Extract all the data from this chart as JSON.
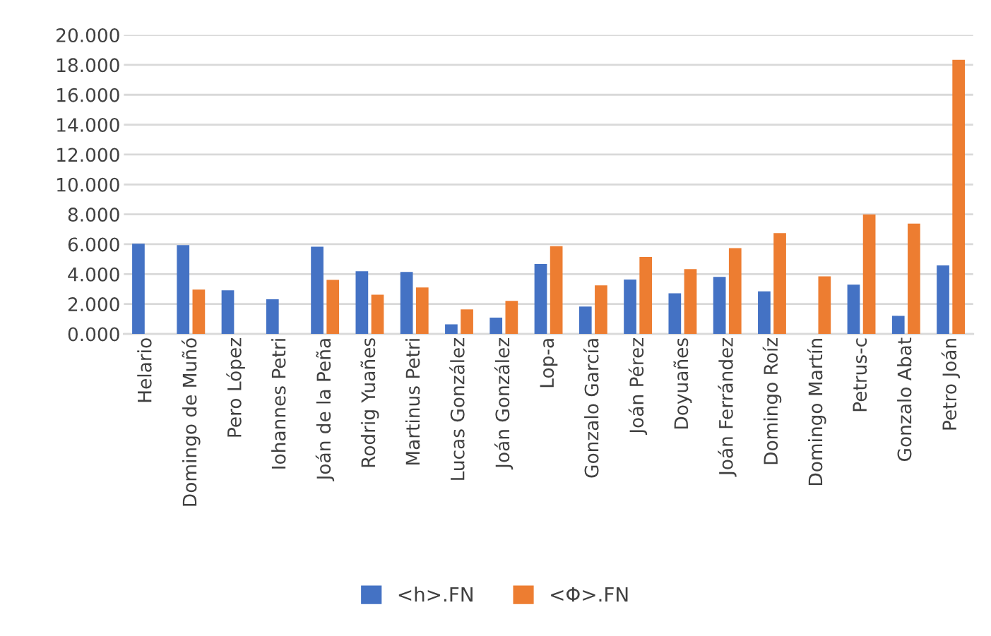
{
  "chart_data": {
    "type": "bar",
    "categories": [
      "Helario",
      "Domingo de Muñó",
      "Pero López",
      "Iohannes Petri",
      "Joán de la Peña",
      "Rodrig Yuañes",
      "Martinus Petri",
      "Lucas González",
      "Joán González",
      "Lop-a",
      "Gonzalo García",
      "Joán Pérez",
      "Doyuañes",
      "Joán Ferrández",
      "Domingo Roíz",
      "Domingo Martín",
      "Petrus-c",
      "Gonzalo Abat",
      "Petro Joán"
    ],
    "series": [
      {
        "name": "<h>.FN",
        "color": "#4472c4",
        "values": [
          6.04,
          5.94,
          2.92,
          2.32,
          5.83,
          4.19,
          4.15,
          0.64,
          1.09,
          4.68,
          1.83,
          3.64,
          2.72,
          3.81,
          2.85,
          null,
          3.3,
          1.21,
          4.58
        ]
      },
      {
        "name": "<Φ>.FN",
        "color": "#ed7d31",
        "values": [
          null,
          2.96,
          null,
          null,
          3.62,
          2.62,
          3.11,
          1.64,
          2.21,
          5.87,
          3.25,
          5.15,
          4.34,
          5.74,
          6.74,
          3.85,
          8.0,
          7.38,
          18.34
        ]
      }
    ],
    "ylim": [
      0,
      20
    ],
    "yticks": [
      {
        "value": 0,
        "label": "0.000"
      },
      {
        "value": 2,
        "label": "2.000"
      },
      {
        "value": 4,
        "label": "4.000"
      },
      {
        "value": 6,
        "label": "6.000"
      },
      {
        "value": 8,
        "label": "8.000"
      },
      {
        "value": 10,
        "label": "10.000"
      },
      {
        "value": 12,
        "label": "12.000"
      },
      {
        "value": 14,
        "label": "14.000"
      },
      {
        "value": 16,
        "label": "16.000"
      },
      {
        "value": 18,
        "label": "18.000"
      },
      {
        "value": 20,
        "label": "20.000"
      }
    ],
    "grid": "y",
    "legend": "bottom"
  }
}
